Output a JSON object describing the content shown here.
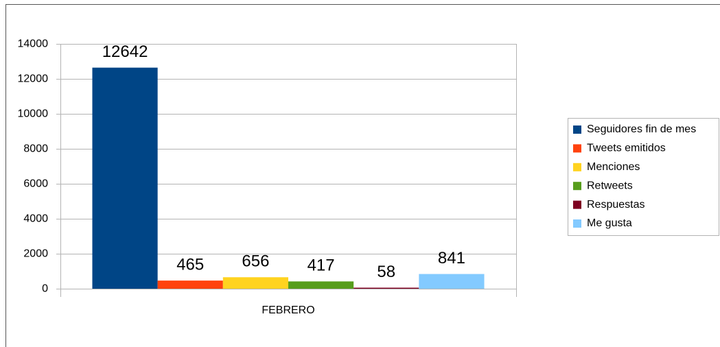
{
  "chart_data": {
    "type": "bar",
    "categories": [
      "FEBRERO"
    ],
    "series": [
      {
        "name": "Seguidores fin de mes",
        "color": "#004586",
        "values": [
          12642
        ]
      },
      {
        "name": "Tweets emitidos",
        "color": "#ff420e",
        "values": [
          465
        ]
      },
      {
        "name": "Menciones",
        "color": "#ffd320",
        "values": [
          656
        ]
      },
      {
        "name": "Retweets",
        "color": "#579d1c",
        "values": [
          417
        ]
      },
      {
        "name": "Respuestas",
        "color": "#7e0021",
        "values": [
          58
        ]
      },
      {
        "name": "Me gusta",
        "color": "#83caff",
        "values": [
          841
        ]
      }
    ],
    "ylim": [
      0,
      14000
    ],
    "yticks": [
      0,
      2000,
      4000,
      6000,
      8000,
      10000,
      12000,
      14000
    ],
    "grid": true,
    "legend": "right"
  }
}
